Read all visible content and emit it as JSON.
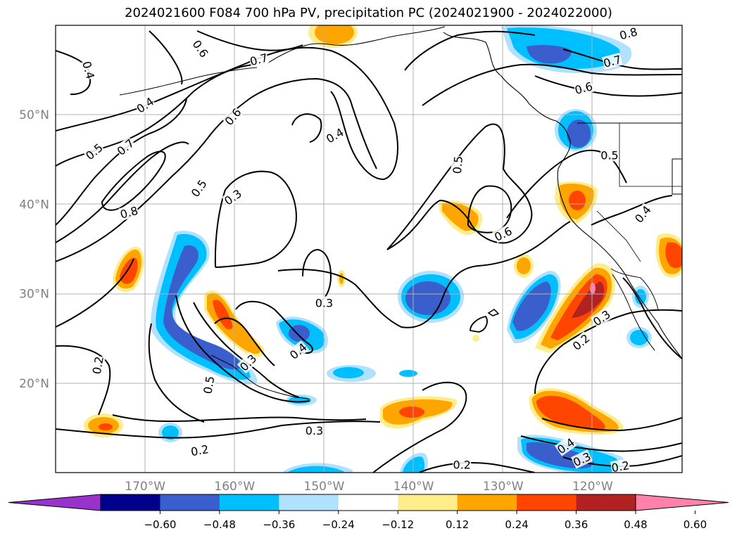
{
  "title": "2024021600 F084 700 hPa PV, precipitation PC (2024021900 - 2024022000)",
  "axes": {
    "lon_ticks": [
      "170°W",
      "160°W",
      "150°W",
      "140°W",
      "130°W",
      "120°W"
    ],
    "lat_ticks": [
      "50°N",
      "40°N",
      "30°N",
      "20°N"
    ],
    "lon_range": [
      -180,
      -110
    ],
    "lat_range": [
      10,
      60
    ],
    "grid": true
  },
  "colorbar": {
    "ticks": [
      "−0.60",
      "−0.48",
      "−0.36",
      "−0.24",
      "−0.12",
      "0.12",
      "0.24",
      "0.36",
      "0.48",
      "0.60"
    ],
    "colors": [
      "#9932cc",
      "#00008b",
      "#3a5fcd",
      "#00bfff",
      "#b0e2ff",
      "#ffffff",
      "#ffec8b",
      "#ffa500",
      "#ff4500",
      "#b22222",
      "#ff82ab"
    ],
    "extend": "both"
  },
  "contour_labels": [
    {
      "text": "0.4",
      "lon": -176.3,
      "lat": 55.0,
      "rot": 75
    },
    {
      "text": "0.6",
      "lon": -163.8,
      "lat": 57.4,
      "rot": 55
    },
    {
      "text": "0.7",
      "lon": -157.3,
      "lat": 56.2,
      "rot": -15
    },
    {
      "text": "0.4",
      "lon": -170.0,
      "lat": 51.1,
      "rot": -35
    },
    {
      "text": "0.6",
      "lon": -160.2,
      "lat": 49.8,
      "rot": -50
    },
    {
      "text": "0.5",
      "lon": -175.7,
      "lat": 45.9,
      "rot": -40
    },
    {
      "text": "0.7",
      "lon": -172.2,
      "lat": 46.4,
      "rot": -40
    },
    {
      "text": "0.5",
      "lon": -164.0,
      "lat": 41.8,
      "rot": -55
    },
    {
      "text": "0.8",
      "lon": -171.8,
      "lat": 39.1,
      "rot": -15
    },
    {
      "text": "0.3",
      "lon": -160.2,
      "lat": 40.8,
      "rot": -35
    },
    {
      "text": "0.4",
      "lon": -148.8,
      "lat": 47.7,
      "rot": -30
    },
    {
      "text": "0.5",
      "lon": -135.1,
      "lat": 44.4,
      "rot": -85
    },
    {
      "text": "0.6",
      "lon": -130.0,
      "lat": 36.7,
      "rot": -25
    },
    {
      "text": "0.8",
      "lon": -116.0,
      "lat": 59.1,
      "rot": -15
    },
    {
      "text": "0.7",
      "lon": -117.8,
      "lat": 56.0,
      "rot": -15
    },
    {
      "text": "0.6",
      "lon": -121.0,
      "lat": 53.0,
      "rot": -15
    },
    {
      "text": "0.5",
      "lon": -118.1,
      "lat": 45.5,
      "rot": 0
    },
    {
      "text": "0.4",
      "lon": -114.4,
      "lat": 38.9,
      "rot": -50
    },
    {
      "text": "0.3",
      "lon": -150.0,
      "lat": 29.0,
      "rot": 0
    },
    {
      "text": "0.4",
      "lon": -152.9,
      "lat": 23.6,
      "rot": -40
    },
    {
      "text": "0.3",
      "lon": -158.5,
      "lat": 22.3,
      "rot": -45
    },
    {
      "text": "0.5",
      "lon": -162.9,
      "lat": 19.8,
      "rot": -80
    },
    {
      "text": "0.2",
      "lon": -175.3,
      "lat": 22.0,
      "rot": -80
    },
    {
      "text": "0.3",
      "lon": -151.1,
      "lat": 14.7,
      "rot": 0
    },
    {
      "text": "0.2",
      "lon": -163.9,
      "lat": 12.5,
      "rot": -10
    },
    {
      "text": "0.3",
      "lon": -119.0,
      "lat": 27.3,
      "rot": -35
    },
    {
      "text": "0.2",
      "lon": -121.3,
      "lat": 24.6,
      "rot": -40
    },
    {
      "text": "0.4",
      "lon": -123.0,
      "lat": 13.0,
      "rot": -35
    },
    {
      "text": "0.3",
      "lon": -121.2,
      "lat": 11.5,
      "rot": -25
    },
    {
      "text": "0.2",
      "lon": -116.9,
      "lat": 10.7,
      "rot": -10
    },
    {
      "text": "0.2",
      "lon": -134.6,
      "lat": 10.9,
      "rot": 0
    }
  ]
}
